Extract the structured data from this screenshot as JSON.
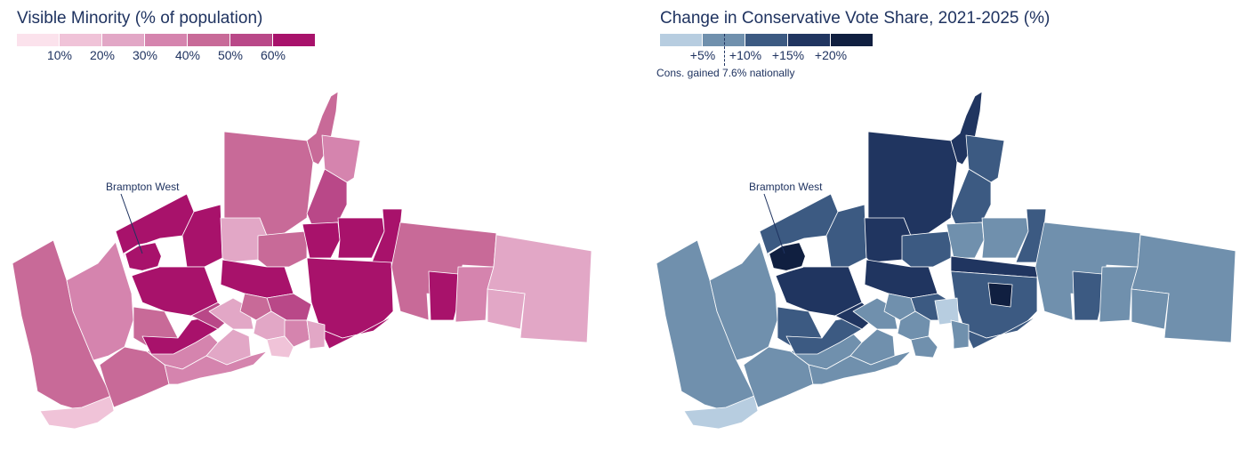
{
  "left_map": {
    "title": "Visible Minority (% of population)",
    "legend": {
      "colors": [
        "#fbe2ec",
        "#f0c3d8",
        "#e2a7c6",
        "#d584ae",
        "#c86a98",
        "#b94888",
        "#a8126b"
      ],
      "labels": [
        "10%",
        "20%",
        "30%",
        "40%",
        "50%",
        "60%"
      ]
    },
    "callout": "Brampton West"
  },
  "right_map": {
    "title": "Change in Conservative Vote Share, 2021-2025 (%)",
    "legend": {
      "colors": [
        "#b7cde0",
        "#7090ad",
        "#3c5a82",
        "#203560",
        "#101f40"
      ],
      "labels": [
        "+5%",
        "+10%",
        "+15%",
        "+20%"
      ]
    },
    "note": "Cons. gained 7.6% nationally",
    "callout": "Brampton West"
  }
}
